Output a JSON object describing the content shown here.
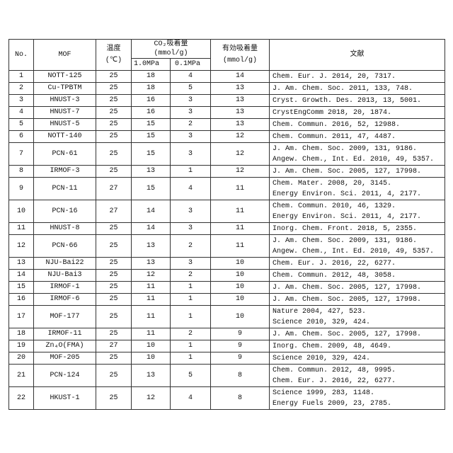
{
  "table": {
    "header": {
      "no": "No.",
      "mof": "MOF",
      "temp": "温度",
      "temp_unit": "(℃)",
      "uptake": "CO₂吸着量",
      "uptake_unit": "(mmol/g)",
      "p1": "1.0MPa",
      "p2": "0.1MPa",
      "effective": "有効吸着量",
      "effective_unit": "(mmol/g)",
      "ref": "文献"
    },
    "rows": [
      [
        1,
        "NOTT-125",
        25,
        18,
        4,
        14,
        [
          "Chem. Eur. J. 2014, 20, 7317."
        ]
      ],
      [
        2,
        "Cu-TPBTM",
        25,
        18,
        5,
        13,
        [
          "J. Am. Chem. Soc. 2011, 133, 748."
        ]
      ],
      [
        3,
        "HNUST-3",
        25,
        16,
        3,
        13,
        [
          "Cryst. Growth. Des. 2013, 13, 5001."
        ]
      ],
      [
        4,
        "HNUST-7",
        25,
        16,
        3,
        13,
        [
          "CrystEngComm 2018, 20, 1874."
        ]
      ],
      [
        5,
        "HNUST-5",
        25,
        15,
        2,
        13,
        [
          "Chem. Commun. 2016, 52, 12988."
        ]
      ],
      [
        6,
        "NOTT-140",
        25,
        15,
        3,
        12,
        [
          "Chem. Commun. 2011, 47, 4487."
        ]
      ],
      [
        7,
        "PCN-61",
        25,
        15,
        3,
        12,
        [
          "J. Am. Chem. Soc. 2009, 131, 9186.",
          "Angew. Chem., Int. Ed. 2010, 49, 5357."
        ]
      ],
      [
        8,
        "IRMOF-3",
        25,
        13,
        1,
        12,
        [
          "J. Am. Chem. Soc. 2005, 127, 17998."
        ]
      ],
      [
        9,
        "PCN-11",
        27,
        15,
        4,
        11,
        [
          "Chem. Mater. 2008, 20, 3145.",
          "Energy Environ. Sci. 2011, 4, 2177."
        ]
      ],
      [
        10,
        "PCN-16",
        27,
        14,
        3,
        11,
        [
          "Chem. Commun. 2010, 46, 1329.",
          "Energy Environ. Sci. 2011, 4, 2177."
        ]
      ],
      [
        11,
        "HNUST-8",
        25,
        14,
        3,
        11,
        [
          "Inorg. Chem. Front. 2018, 5, 2355."
        ]
      ],
      [
        12,
        "PCN-66",
        25,
        13,
        2,
        11,
        [
          "J. Am. Chem. Soc. 2009, 131, 9186.",
          "Angew. Chem., Int. Ed. 2010, 49, 5357."
        ]
      ],
      [
        13,
        "NJU-Bai22",
        25,
        13,
        3,
        10,
        [
          "Chem. Eur. J. 2016, 22, 6277."
        ]
      ],
      [
        14,
        "NJU-Bai3",
        25,
        12,
        2,
        10,
        [
          "Chem. Commun. 2012, 48, 3058."
        ]
      ],
      [
        15,
        "IRMOF-1",
        25,
        11,
        1,
        10,
        [
          "J. Am. Chem. Soc. 2005, 127, 17998."
        ]
      ],
      [
        16,
        "IRMOF-6",
        25,
        11,
        1,
        10,
        [
          "J. Am. Chem. Soc. 2005, 127, 17998."
        ]
      ],
      [
        17,
        "MOF-177",
        25,
        11,
        1,
        10,
        [
          "Nature 2004, 427, 523.",
          "Science 2010, 329, 424."
        ]
      ],
      [
        18,
        "IRMOF-11",
        25,
        11,
        2,
        9,
        [
          "J. Am. Chem. Soc. 2005, 127, 17998."
        ]
      ],
      [
        19,
        "Zn₄O(FMA)",
        27,
        10,
        1,
        9,
        [
          "Inorg. Chem. 2009, 48, 4649."
        ]
      ],
      [
        20,
        "MOF-205",
        25,
        10,
        1,
        9,
        [
          "Science 2010, 329, 424."
        ]
      ],
      [
        21,
        "PCN-124",
        25,
        13,
        5,
        8,
        [
          "Chem. Commun. 2012, 48, 9995.",
          "Chem. Eur. J. 2016, 22, 6277."
        ]
      ],
      [
        22,
        "HKUST-1",
        25,
        12,
        4,
        8,
        [
          "Science 1999, 283, 1148.",
          "Energy Fuels 2009, 23, 2785."
        ]
      ]
    ]
  }
}
